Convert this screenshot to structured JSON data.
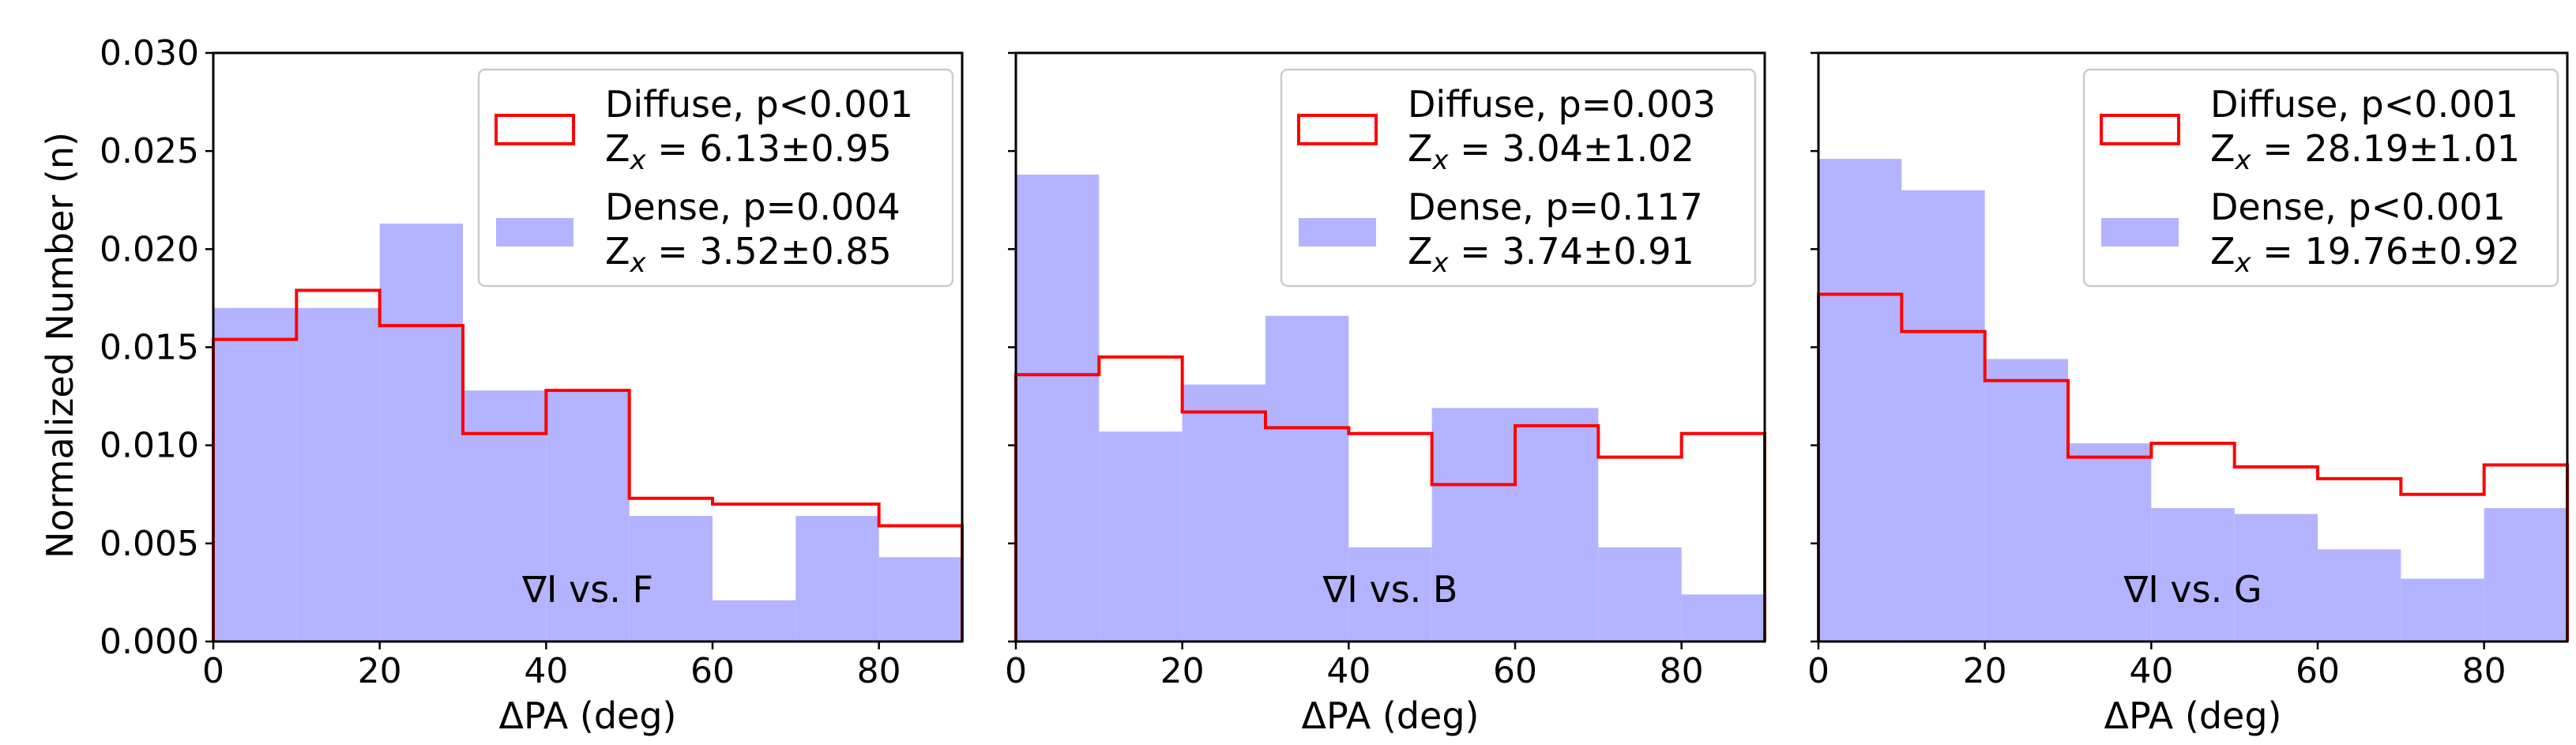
{
  "figure": {
    "ylabel": "Normalized Number (n)",
    "xlabel": "ΔPA (deg)"
  },
  "colors": {
    "diffuse": "#ff0000",
    "dense": "#b3b3ff",
    "axes": "#000000",
    "legend_border": "#cccccc"
  },
  "chart_data": [
    {
      "type": "bar",
      "panel_label": "∇I vs. F",
      "xlabel": "ΔPA (deg)",
      "ylabel": "Normalized Number (n)",
      "xlim": [
        0,
        90
      ],
      "ylim": [
        0,
        0.03
      ],
      "bin_edges": [
        0,
        10,
        20,
        30,
        40,
        50,
        60,
        70,
        80,
        90
      ],
      "xticks": [
        "0",
        "20",
        "40",
        "60",
        "80"
      ],
      "yticks": [
        "0.000",
        "0.005",
        "0.010",
        "0.015",
        "0.020",
        "0.025",
        "0.030"
      ],
      "series": [
        {
          "name": "Diffuse",
          "style": "step",
          "values": [
            0.0154,
            0.0179,
            0.0161,
            0.0106,
            0.0128,
            0.0073,
            0.007,
            0.007,
            0.0059
          ],
          "legend_line1": "Diffuse, p<0.001",
          "legend_line2_value": " = 6.13±0.95"
        },
        {
          "name": "Dense",
          "style": "filled",
          "values": [
            0.017,
            0.017,
            0.0213,
            0.0128,
            0.0128,
            0.0064,
            0.0021,
            0.0064,
            0.0043
          ],
          "legend_line1": "Dense,  p=0.004",
          "legend_line2_value": " = 3.52±0.85"
        }
      ]
    },
    {
      "type": "bar",
      "panel_label": "∇I vs. B",
      "xlabel": "ΔPA (deg)",
      "ylabel": "",
      "xlim": [
        0,
        90
      ],
      "ylim": [
        0,
        0.03
      ],
      "bin_edges": [
        0,
        10,
        20,
        30,
        40,
        50,
        60,
        70,
        80,
        90
      ],
      "xticks": [
        "0",
        "20",
        "40",
        "60",
        "80"
      ],
      "yticks": [],
      "series": [
        {
          "name": "Diffuse",
          "style": "step",
          "values": [
            0.0136,
            0.0145,
            0.0117,
            0.0109,
            0.0106,
            0.008,
            0.011,
            0.0094,
            0.0106
          ],
          "legend_line1": "Diffuse, p=0.003",
          "legend_line2_value": " = 3.04±1.02"
        },
        {
          "name": "Dense",
          "style": "filled",
          "values": [
            0.0238,
            0.0107,
            0.0131,
            0.0166,
            0.0048,
            0.0119,
            0.0119,
            0.0048,
            0.0024
          ],
          "legend_line1": "Dense,  p=0.117",
          "legend_line2_value": " = 3.74±0.91"
        }
      ]
    },
    {
      "type": "bar",
      "panel_label": "∇I vs. G",
      "xlabel": "ΔPA (deg)",
      "ylabel": "",
      "xlim": [
        0,
        90
      ],
      "ylim": [
        0,
        0.03
      ],
      "bin_edges": [
        0,
        10,
        20,
        30,
        40,
        50,
        60,
        70,
        80,
        90
      ],
      "xticks": [
        "0",
        "20",
        "40",
        "60",
        "80"
      ],
      "yticks": [],
      "series": [
        {
          "name": "Diffuse",
          "style": "step",
          "values": [
            0.0177,
            0.0158,
            0.0133,
            0.0094,
            0.0101,
            0.0089,
            0.0083,
            0.0075,
            0.009
          ],
          "legend_line1": "Diffuse, p<0.001",
          "legend_line2_value": " = 28.19±1.01"
        },
        {
          "name": "Dense",
          "style": "filled",
          "values": [
            0.0246,
            0.023,
            0.0144,
            0.0101,
            0.0068,
            0.0065,
            0.0047,
            0.0032,
            0.0068
          ],
          "legend_line1": "Dense,  p<0.001",
          "legend_line2_value": " = 19.76±0.92"
        }
      ]
    }
  ]
}
